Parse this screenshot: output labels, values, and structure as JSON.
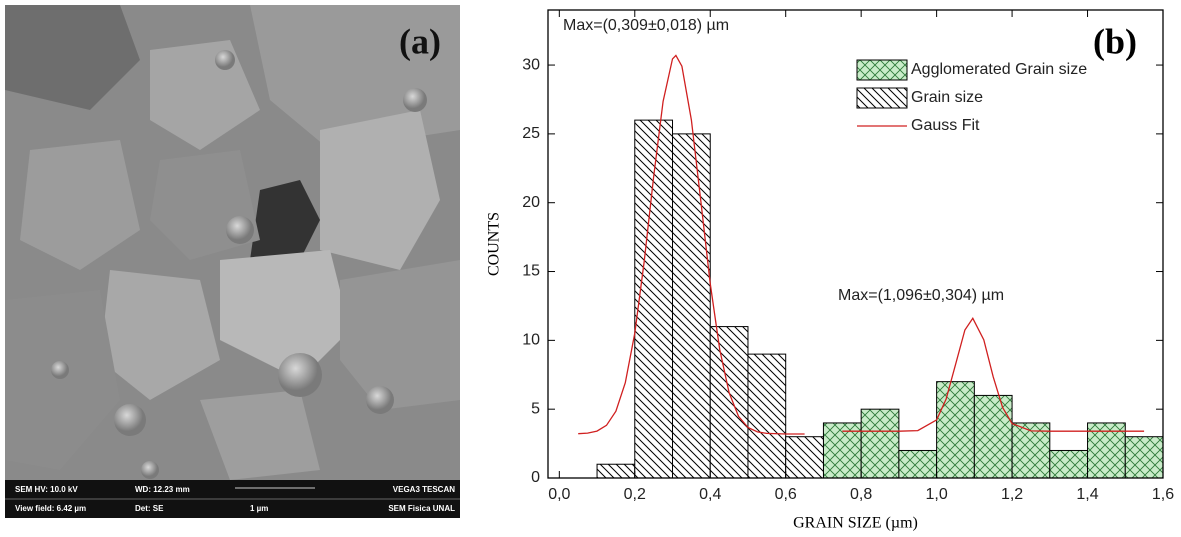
{
  "image_panel": {
    "label": "(a)",
    "info": [
      "SEM HV: 10.0 kV",
      "WD: 12.23 mm",
      "VEGA3 TESCAN",
      "View field: 6.42 µm",
      "Det: SE",
      "1 µm",
      "SEM Fisica UNAL"
    ]
  },
  "chart_data": {
    "type": "histogram",
    "label": "(b)",
    "x_label": "GRAIN SIZE (µm)",
    "y_label": "COUNTS",
    "annotations": [
      "Max=(0,309±0,018) µm",
      "Max=(1,096±0,304) µm"
    ],
    "xlim": [
      -0.03,
      1.6
    ],
    "ylim": [
      0,
      34
    ],
    "xticks": [
      {
        "value": 0,
        "label": "0,0"
      },
      {
        "value": 0.2,
        "label": "0,2"
      },
      {
        "value": 0.4,
        "label": "0,4"
      },
      {
        "value": 0.6,
        "label": "0,6"
      },
      {
        "value": 0.8,
        "label": "0,8"
      },
      {
        "value": 1.0,
        "label": "1,0"
      },
      {
        "value": 1.2,
        "label": "1,2"
      },
      {
        "value": 1.4,
        "label": "1,4"
      },
      {
        "value": 1.6,
        "label": "1,6"
      }
    ],
    "yticks": [
      0,
      5,
      10,
      15,
      20,
      25,
      30
    ],
    "legend": "upper right",
    "series": [
      {
        "name": "Agglomerated Grain size",
        "color": "#2e9a3e",
        "bins": [
          0.7,
          0.8,
          0.9,
          1.0,
          1.1,
          1.2,
          1.3,
          1.4,
          1.5,
          1.6
        ],
        "values": [
          4,
          5,
          2,
          7,
          6,
          4,
          2,
          4,
          3
        ]
      },
      {
        "name": "Grain size",
        "color": "#000000",
        "bins": [
          0.1,
          0.2,
          0.3,
          0.4,
          0.5,
          0.6,
          0.7
        ],
        "values": [
          1,
          26,
          25,
          11,
          9,
          3
        ]
      },
      {
        "name": "Gauss Fit",
        "color": "#d02020",
        "x": [
          0.05,
          0.075,
          0.1,
          0.125,
          0.15,
          0.175,
          0.2,
          0.225,
          0.25,
          0.275,
          0.3,
          0.309,
          0.325,
          0.35,
          0.375,
          0.4,
          0.425,
          0.45,
          0.475,
          0.5,
          0.525,
          0.55,
          0.6,
          0.65,
          null,
          0.75,
          0.9,
          0.95,
          1.0,
          1.025,
          1.05,
          1.075,
          1.096,
          1.125,
          1.15,
          1.175,
          1.2,
          1.25,
          1.3,
          1.55
        ],
        "values": [
          3.22,
          3.26,
          3.41,
          3.83,
          4.85,
          6.92,
          10.53,
          15.73,
          21.85,
          27.37,
          30.45,
          30.7,
          29.92,
          26.0,
          20.14,
          14.14,
          9.34,
          6.2,
          4.48,
          3.67,
          3.35,
          3.24,
          3.2,
          3.2,
          null,
          3.4,
          3.4,
          3.44,
          4.22,
          5.73,
          8.23,
          10.75,
          11.6,
          10.04,
          7.35,
          5.12,
          3.95,
          3.42,
          3.4,
          3.4
        ]
      }
    ]
  }
}
